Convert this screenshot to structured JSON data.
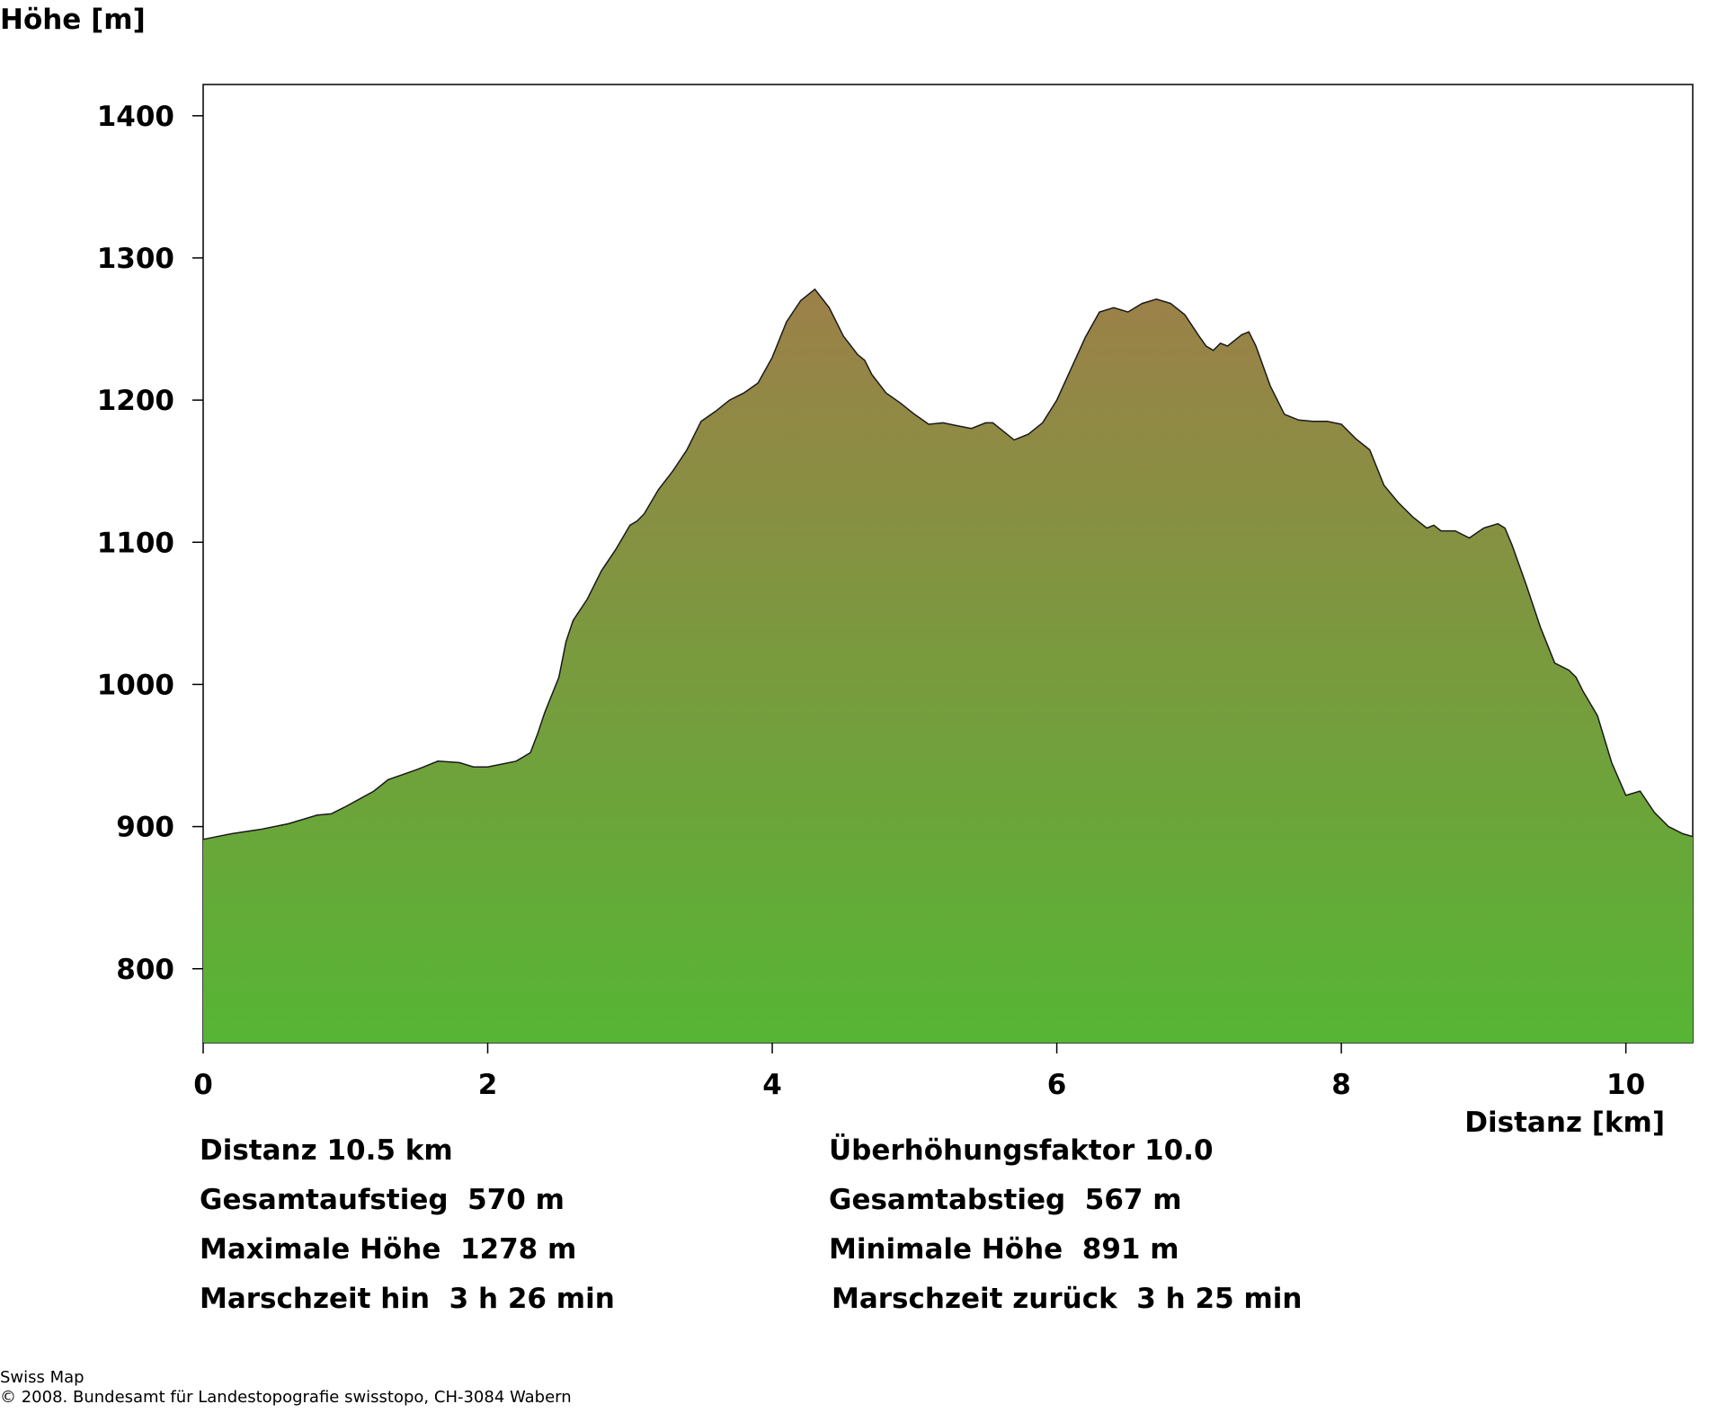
{
  "chart_data": {
    "type": "area",
    "ylabel": "Höhe [m]",
    "xlabel": "Distanz [km]",
    "xlim": [
      0,
      10.47
    ],
    "ylim": [
      748,
      1422
    ],
    "x_ticks": [
      0,
      2,
      4,
      6,
      8,
      10
    ],
    "y_ticks": [
      800,
      900,
      1000,
      1100,
      1200,
      1300,
      1400
    ],
    "grid": false,
    "legend": "none",
    "colors": {
      "fill_top": "#9c8048",
      "fill_bottom": "#56b534",
      "line": "#1a1a1a"
    },
    "x": [
      0,
      0.2,
      0.4,
      0.6,
      0.8,
      0.9,
      1.0,
      1.2,
      1.3,
      1.5,
      1.55,
      1.65,
      1.8,
      1.9,
      2.0,
      2.2,
      2.3,
      2.35,
      2.4,
      2.5,
      2.55,
      2.6,
      2.7,
      2.8,
      2.9,
      3.0,
      3.05,
      3.1,
      3.2,
      3.3,
      3.4,
      3.5,
      3.6,
      3.7,
      3.8,
      3.9,
      4.0,
      4.1,
      4.2,
      4.3,
      4.4,
      4.5,
      4.6,
      4.65,
      4.7,
      4.8,
      4.9,
      5.0,
      5.1,
      5.2,
      5.3,
      5.4,
      5.5,
      5.55,
      5.6,
      5.7,
      5.8,
      5.9,
      6.0,
      6.1,
      6.2,
      6.3,
      6.4,
      6.5,
      6.6,
      6.7,
      6.8,
      6.9,
      7.0,
      7.05,
      7.1,
      7.15,
      7.2,
      7.3,
      7.35,
      7.4,
      7.5,
      7.6,
      7.7,
      7.8,
      7.9,
      8.0,
      8.1,
      8.2,
      8.3,
      8.4,
      8.5,
      8.6,
      8.65,
      8.7,
      8.8,
      8.9,
      9.0,
      9.1,
      9.15,
      9.2,
      9.3,
      9.4,
      9.5,
      9.6,
      9.65,
      9.7,
      9.8,
      9.9,
      10.0,
      10.1,
      10.2,
      10.3,
      10.4,
      10.47
    ],
    "y": [
      891,
      895,
      898,
      902,
      908,
      909,
      914,
      925,
      933,
      940,
      942,
      946,
      945,
      942,
      942,
      946,
      952,
      965,
      980,
      1005,
      1030,
      1045,
      1060,
      1080,
      1095,
      1112,
      1115,
      1120,
      1137,
      1150,
      1165,
      1185,
      1192,
      1200,
      1205,
      1212,
      1230,
      1255,
      1270,
      1278,
      1265,
      1245,
      1232,
      1228,
      1218,
      1205,
      1198,
      1190,
      1183,
      1184,
      1182,
      1180,
      1184,
      1184,
      1180,
      1172,
      1176,
      1184,
      1200,
      1222,
      1244,
      1262,
      1265,
      1262,
      1268,
      1271,
      1268,
      1260,
      1245,
      1238,
      1235,
      1240,
      1238,
      1246,
      1248,
      1238,
      1210,
      1190,
      1186,
      1185,
      1185,
      1183,
      1173,
      1165,
      1140,
      1128,
      1118,
      1110,
      1112,
      1108,
      1108,
      1103,
      1110,
      1113,
      1110,
      1098,
      1070,
      1040,
      1015,
      1010,
      1005,
      995,
      978,
      945,
      922,
      925,
      910,
      900,
      895,
      893
    ]
  },
  "stats": {
    "left": [
      "Distanz 10.5 km",
      "Gesamtaufstieg  570 m",
      "Maximale Höhe  1278 m",
      "Marschzeit hin  3 h 26 min"
    ],
    "right": [
      "Überhöhungsfaktor 10.0",
      "Gesamtabstieg  567 m",
      "Minimale Höhe  891 m",
      "Marschzeit zurück  3 h 25 min"
    ]
  },
  "footer": {
    "line1": "Swiss Map",
    "line2": "© 2008. Bundesamt für Landestopografie swisstopo, CH-3084 Wabern"
  }
}
